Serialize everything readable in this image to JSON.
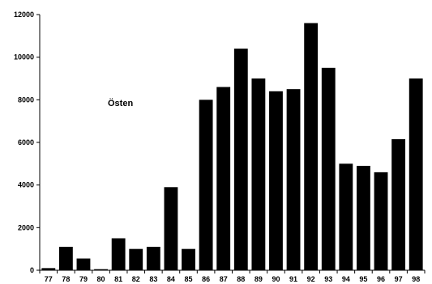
{
  "chart_data": {
    "type": "bar",
    "categories": [
      "77",
      "78",
      "79",
      "80",
      "81",
      "82",
      "83",
      "84",
      "85",
      "86",
      "87",
      "88",
      "89",
      "90",
      "91",
      "92",
      "93",
      "94",
      "95",
      "96",
      "97",
      "98"
    ],
    "values": [
      100,
      1100,
      550,
      50,
      1500,
      1000,
      1100,
      3900,
      1000,
      8000,
      8600,
      10400,
      9000,
      8400,
      8500,
      11600,
      9500,
      5000,
      4900,
      4600,
      6150,
      9000
    ],
    "ylim": [
      0,
      12000
    ],
    "yticks": [
      0,
      2000,
      4000,
      6000,
      8000,
      10000,
      12000
    ],
    "annotation": "Östen",
    "bar_color": "#000000",
    "grid": false,
    "legend": "none"
  }
}
